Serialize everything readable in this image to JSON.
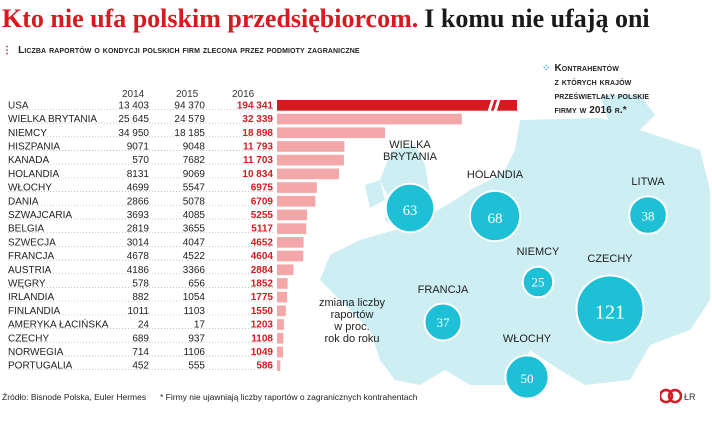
{
  "title": {
    "red": "Kto nie ufa polskim przedsiębiorcom.",
    "black": "I komu nie ufają oni"
  },
  "chart_heading": "Liczba raportów o kondycji polskich firm zlecona przez podmioty zagraniczne",
  "map_heading": "Kontrahentów\nz których krajów\nprześwietlały polskie\nfirmy w 2016 r.*",
  "change_note": "zmiana liczby\nraportów\nw proc.\nrok do roku",
  "footer": {
    "source": "Źródło: Bisnode Polska, Euler Hermes",
    "note": "* Firmy nie ujawniają liczby raportów o zagranicznych kontrahentach",
    "initials": "ŁR"
  },
  "colors": {
    "accent_red": "#d71920",
    "bar_light": "#f4a7a9",
    "bar_mid": "#ec8789",
    "map_land": "#cdeef3",
    "map_sea": "#ffffff",
    "bubble": "#1ec0d6",
    "bubble_text": "#ffffff"
  },
  "chart_data": [
    {
      "type": "bar",
      "orientation": "horizontal",
      "title": "Liczba raportów o kondycji polskich firm zlecona przez podmioty zagraniczne",
      "years": [
        "2014",
        "2015",
        "2016"
      ],
      "categories": [
        "USA",
        "WIELKA BRYTANIA",
        "NIEMCY",
        "HISZPANIA",
        "KANADA",
        "HOLANDIA",
        "WŁOCHY",
        "DANIA",
        "SZWAJCARIA",
        "BELGIA",
        "SZWECJA",
        "FRANCJA",
        "AUSTRIA",
        "WĘGRY",
        "IRLANDIA",
        "FINLANDIA",
        "AMERYKA ŁACIŃSKA",
        "CZECHY",
        "NORWEGIA",
        "PORTUGALIA"
      ],
      "values_2014": [
        "13 403",
        "25 645",
        "34 950",
        "9071",
        "570",
        "8131",
        "4699",
        "2866",
        "3693",
        "2819",
        "3014",
        "4678",
        "4186",
        "578",
        "882",
        "1011",
        "24",
        "689",
        "714",
        "452"
      ],
      "values_2015": [
        "94 370",
        "24 579",
        "18 185",
        "9048",
        "7682",
        "9069",
        "5547",
        "5078",
        "4085",
        "3655",
        "4047",
        "4522",
        "3366",
        "656",
        "1054",
        "1103",
        "17",
        "937",
        "1106",
        "555"
      ],
      "values_2016": [
        "194 341",
        "32 339",
        "18 898",
        "11 793",
        "11 703",
        "10 834",
        "6975",
        "6709",
        "5255",
        "5117",
        "4652",
        "4604",
        "2884",
        "1852",
        "1775",
        "1550",
        "1203",
        "1108",
        "1049",
        "586"
      ],
      "series": [
        {
          "name": "2016",
          "values": [
            194341,
            32339,
            18898,
            11793,
            11703,
            10834,
            6975,
            6709,
            5255,
            5117,
            4652,
            4604,
            2884,
            1852,
            1775,
            1550,
            1203,
            1108,
            1049,
            586
          ]
        }
      ],
      "axis_break_on_first": true,
      "grid": false,
      "legend": "none"
    },
    {
      "type": "bubble-map",
      "title": "Kontrahentów z których krajów prześwietlały polskie firmy w 2016 r.*",
      "items": [
        {
          "country": "WIELKA\nBRYTANIA",
          "value": 63
        },
        {
          "country": "HOLANDIA",
          "value": 68
        },
        {
          "country": "LITWA",
          "value": 38
        },
        {
          "country": "NIEMCY",
          "value": 25
        },
        {
          "country": "CZECHY",
          "value": 121
        },
        {
          "country": "FRANCJA",
          "value": 37
        },
        {
          "country": "WŁOCHY",
          "value": 50
        }
      ]
    }
  ]
}
